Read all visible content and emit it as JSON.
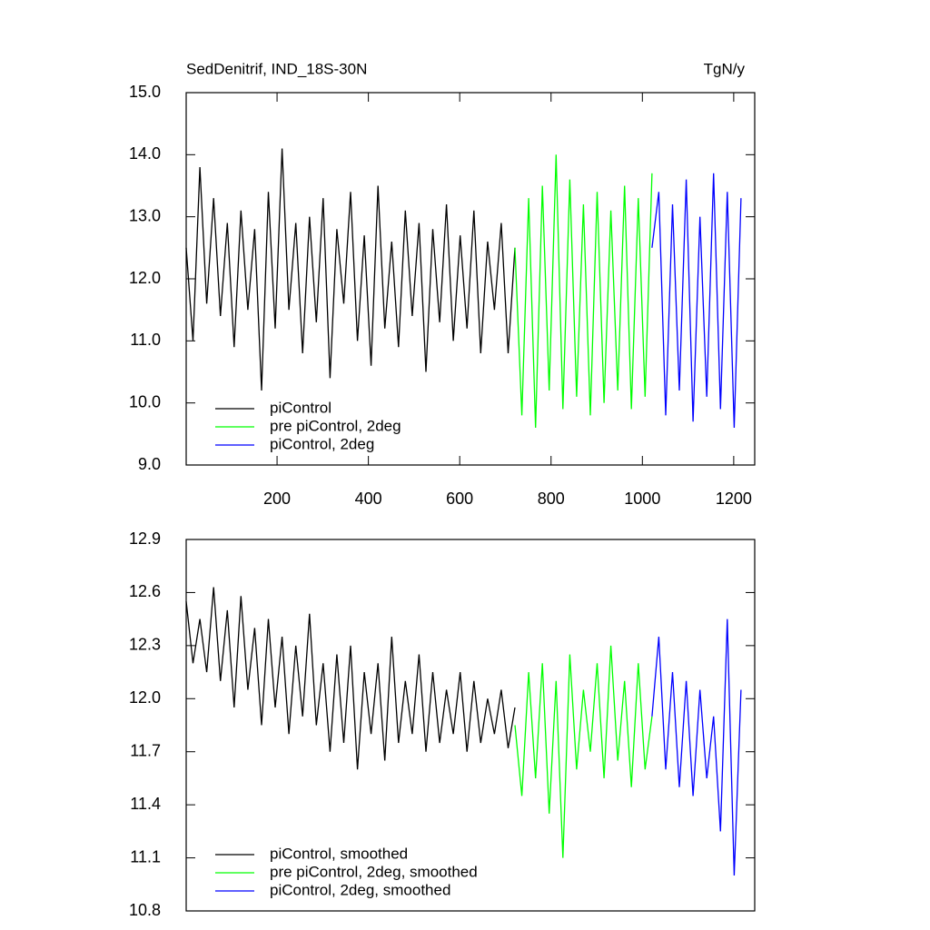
{
  "chart_data": [
    {
      "type": "line",
      "title": "SedDenitrif, IND_18S-30N",
      "units": "TgN/y",
      "xlim": [
        1,
        1246
      ],
      "ylim": [
        9,
        15
      ],
      "xticks": [
        200,
        400,
        600,
        800,
        1000,
        1200
      ],
      "yticks": [
        {
          "value": 9,
          "label": "9.0"
        },
        {
          "value": 10,
          "label": "10.0"
        },
        {
          "value": 11,
          "label": "11.0"
        },
        {
          "value": 12,
          "label": "12.0"
        },
        {
          "value": 13,
          "label": "13.0"
        },
        {
          "value": 14,
          "label": "14.0"
        },
        {
          "value": 15,
          "label": "15.0"
        }
      ],
      "series": [
        {
          "name": "piControl",
          "color": "#000000",
          "x": [
            1,
            16,
            31,
            46,
            61,
            76,
            91,
            106,
            121,
            136,
            151,
            166,
            181,
            196,
            211,
            226,
            241,
            256,
            271,
            286,
            301,
            316,
            331,
            346,
            361,
            376,
            391,
            406,
            421,
            436,
            451,
            466,
            481,
            496,
            511,
            526,
            541,
            556,
            571,
            586,
            601,
            616,
            631,
            646,
            661,
            676,
            691,
            706,
            721
          ],
          "values": [
            12.5,
            11.0,
            13.8,
            11.6,
            13.3,
            11.4,
            12.9,
            10.9,
            13.1,
            11.5,
            12.8,
            10.2,
            13.4,
            11.2,
            14.1,
            11.5,
            12.9,
            10.8,
            13.0,
            11.3,
            13.3,
            10.4,
            12.8,
            11.6,
            13.4,
            11.0,
            12.7,
            10.6,
            13.5,
            11.2,
            12.6,
            10.9,
            13.1,
            11.4,
            12.9,
            10.5,
            12.8,
            11.3,
            13.2,
            11.0,
            12.7,
            11.2,
            13.1,
            10.8,
            12.6,
            11.5,
            12.9,
            10.8,
            12.5
          ]
        },
        {
          "name": "pre piControl, 2deg",
          "color": "#00ff00",
          "x": [
            721,
            736,
            751,
            766,
            781,
            796,
            811,
            826,
            841,
            856,
            871,
            886,
            901,
            916,
            931,
            946,
            961,
            976,
            991,
            1006,
            1021
          ],
          "values": [
            12.5,
            9.8,
            13.3,
            9.6,
            13.5,
            10.2,
            14.0,
            9.9,
            13.6,
            10.1,
            13.2,
            9.8,
            13.4,
            10.0,
            13.1,
            10.2,
            13.5,
            9.9,
            13.3,
            10.1,
            13.7
          ]
        },
        {
          "name": "piControl, 2deg",
          "color": "#0000ff",
          "x": [
            1021,
            1036,
            1051,
            1066,
            1081,
            1096,
            1111,
            1126,
            1141,
            1156,
            1171,
            1186,
            1201,
            1216
          ],
          "values": [
            12.5,
            13.4,
            9.8,
            13.2,
            10.2,
            13.6,
            9.7,
            13.0,
            10.1,
            13.7,
            9.9,
            13.4,
            9.6,
            13.3
          ]
        }
      ]
    },
    {
      "type": "line",
      "xlim": [
        1,
        1246
      ],
      "ylim": [
        10.8,
        12.9
      ],
      "yticks": [
        10.8,
        11.1,
        11.4,
        11.7,
        {
          "value": 12,
          "label": "12.0"
        },
        12.3,
        12.6,
        12.9
      ],
      "series": [
        {
          "name": "piControl, smoothed",
          "color": "#000000",
          "x": [
            1,
            16,
            31,
            46,
            61,
            76,
            91,
            106,
            121,
            136,
            151,
            166,
            181,
            196,
            211,
            226,
            241,
            256,
            271,
            286,
            301,
            316,
            331,
            346,
            361,
            376,
            391,
            406,
            421,
            436,
            451,
            466,
            481,
            496,
            511,
            526,
            541,
            556,
            571,
            586,
            601,
            616,
            631,
            646,
            661,
            676,
            691,
            706,
            721
          ],
          "values": [
            12.55,
            12.2,
            12.45,
            12.15,
            12.63,
            12.1,
            12.5,
            11.95,
            12.58,
            12.05,
            12.4,
            11.85,
            12.45,
            11.95,
            12.35,
            11.8,
            12.3,
            11.9,
            12.48,
            11.85,
            12.2,
            11.7,
            12.25,
            11.75,
            12.3,
            11.6,
            12.15,
            11.8,
            12.2,
            11.65,
            12.35,
            11.75,
            12.1,
            11.8,
            12.25,
            11.7,
            12.15,
            11.75,
            12.05,
            11.8,
            12.15,
            11.7,
            12.1,
            11.75,
            12.0,
            11.8,
            12.05,
            11.72,
            11.95
          ]
        },
        {
          "name": "pre piControl, 2deg, smoothed",
          "color": "#00ff00",
          "x": [
            721,
            736,
            751,
            766,
            781,
            796,
            811,
            826,
            841,
            856,
            871,
            886,
            901,
            916,
            931,
            946,
            961,
            976,
            991,
            1006,
            1021
          ],
          "values": [
            11.85,
            11.45,
            12.15,
            11.55,
            12.2,
            11.35,
            12.1,
            11.1,
            12.25,
            11.6,
            12.05,
            11.7,
            12.2,
            11.55,
            12.3,
            11.65,
            12.1,
            11.5,
            12.2,
            11.6,
            11.9
          ]
        },
        {
          "name": "piControl, 2deg, smoothed",
          "color": "#0000ff",
          "x": [
            1021,
            1036,
            1051,
            1066,
            1081,
            1096,
            1111,
            1126,
            1141,
            1156,
            1171,
            1186,
            1201,
            1216
          ],
          "values": [
            11.9,
            12.35,
            11.6,
            12.15,
            11.5,
            12.1,
            11.45,
            12.05,
            11.55,
            11.9,
            11.25,
            12.45,
            11.0,
            12.05
          ]
        }
      ]
    }
  ]
}
